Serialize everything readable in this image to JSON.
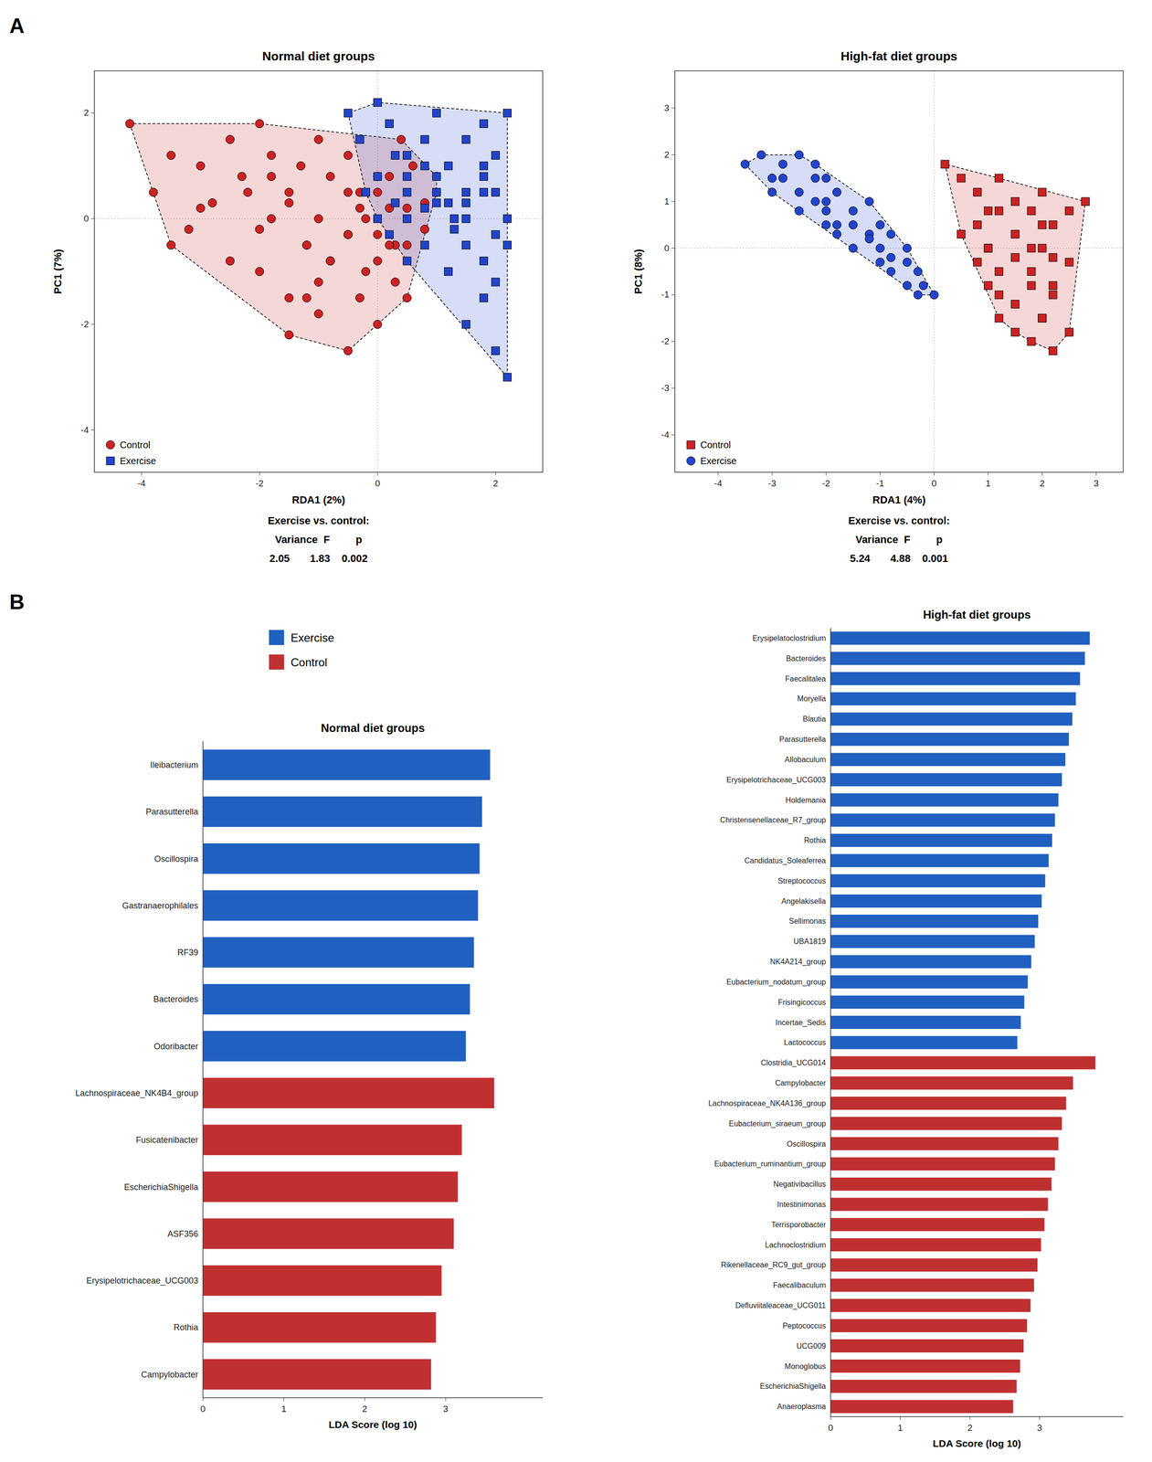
{
  "chart_data": [
    {
      "type": "scatter",
      "title": "Normal diet groups",
      "x_label": "RDA1 (2%)",
      "y_label": "PC1 (7%)",
      "xlim": [
        -4.8,
        2.8
      ],
      "ylim": [
        -4.8,
        2.8
      ],
      "xticks": [
        -4,
        -2,
        0,
        2
      ],
      "yticks": [
        -4,
        -2,
        0,
        2
      ],
      "grid": false,
      "legend": "lower left",
      "annotations": [
        "A",
        "Exercise vs. control:",
        "Variance  F         p",
        "2.05       1.83    0.002"
      ],
      "series": [
        {
          "name": "Control",
          "color": "#CC2222",
          "marker": "circle",
          "x": [
            -4.2,
            -3.8,
            -3.5,
            -3.2,
            -3.0,
            -2.8,
            -2.5,
            -2.3,
            -2.0,
            -1.8,
            -1.5,
            -1.3,
            -1.0,
            -0.8,
            -0.5,
            -0.3,
            0.0,
            0.2,
            0.4,
            0.6,
            0.8,
            1.0,
            -3.5,
            -3.0,
            -2.5,
            -2.2,
            -2.0,
            -1.8,
            -1.5,
            -1.2,
            -1.0,
            -0.8,
            -0.5,
            -0.3,
            0.0,
            0.2,
            0.5,
            -2.0,
            -1.8,
            -1.5,
            -1.2,
            -1.0,
            -0.8,
            -0.5,
            -0.3,
            0.0,
            0.3,
            -1.5,
            -1.2,
            -1.0,
            -0.5,
            -0.2,
            0.0,
            0.3,
            0.5,
            -0.5,
            -0.2,
            0.0,
            0.2,
            0.5,
            0.8,
            1.0
          ],
          "values": [
            1.8,
            0.5,
            1.2,
            -0.2,
            1.0,
            0.3,
            1.5,
            0.8,
            1.8,
            1.2,
            0.5,
            1.0,
            1.5,
            0.8,
            1.2,
            0.5,
            0.8,
            0.2,
            1.5,
            1.0,
            0.3,
            0.8,
            -0.5,
            0.2,
            -0.8,
            0.5,
            -0.2,
            0.8,
            0.3,
            -0.5,
            0.0,
            -0.8,
            0.5,
            0.2,
            -0.3,
            0.8,
            -0.5,
            -1.0,
            0.0,
            -1.5,
            -0.5,
            -1.2,
            -0.8,
            -0.3,
            -1.5,
            -0.8,
            -1.2,
            -2.2,
            -1.5,
            -1.8,
            -2.5,
            -1.0,
            -2.0,
            -0.5,
            -1.5,
            -0.3,
            0.0,
            0.5,
            -0.5,
            0.2,
            -0.2,
            0.5
          ]
        },
        {
          "name": "Exercise",
          "color": "#2244CC",
          "marker": "square",
          "x": [
            -0.5,
            -0.3,
            0.0,
            0.2,
            0.5,
            0.8,
            1.0,
            1.2,
            1.5,
            1.8,
            2.0,
            2.2,
            -0.2,
            0.0,
            0.3,
            0.5,
            0.8,
            1.0,
            1.2,
            1.5,
            1.8,
            2.0,
            0.0,
            0.3,
            0.5,
            0.8,
            1.0,
            1.3,
            1.5,
            1.8,
            0.2,
            0.5,
            0.8,
            1.0,
            1.3,
            1.5,
            1.8,
            2.0,
            2.2,
            0.5,
            0.8,
            1.2,
            1.5,
            1.8,
            2.0,
            2.2,
            1.5,
            1.8,
            2.0,
            2.2
          ],
          "values": [
            2.0,
            1.5,
            2.2,
            1.8,
            1.2,
            1.5,
            2.0,
            1.0,
            1.5,
            1.8,
            1.2,
            2.0,
            0.5,
            0.8,
            1.2,
            0.5,
            1.0,
            0.8,
            0.3,
            0.5,
            1.0,
            0.5,
            0.0,
            0.3,
            0.8,
            0.2,
            0.5,
            0.0,
            0.3,
            0.8,
            -0.3,
            0.0,
            -0.5,
            0.3,
            -0.2,
            0.0,
            0.5,
            -0.3,
            0.0,
            -0.8,
            -0.5,
            -1.0,
            -0.5,
            -0.8,
            -1.2,
            -0.5,
            -2.0,
            -1.5,
            -2.5,
            -3.0
          ]
        }
      ]
    },
    {
      "type": "scatter",
      "title": "High-fat diet groups",
      "x_label": "RDA1 (4%)",
      "y_label": "PC1 (8%)",
      "xlim": [
        -4.8,
        3.5
      ],
      "ylim": [
        -4.8,
        3.8
      ],
      "xticks": [
        -4,
        -3,
        -2,
        -1,
        0,
        1,
        2,
        3
      ],
      "yticks": [
        -4,
        -3,
        -2,
        -1,
        0,
        1,
        2,
        3
      ],
      "grid": false,
      "legend": "lower left",
      "annotations": [
        "Exercise vs. control:",
        "Variance  F         p",
        "5.24       4.88    0.001"
      ],
      "series": [
        {
          "name": "Control",
          "color": "#CC2222",
          "marker": "square",
          "x": [
            0.2,
            0.5,
            0.8,
            1.0,
            1.2,
            1.5,
            1.8,
            2.0,
            2.2,
            2.5,
            2.8,
            0.5,
            0.8,
            1.0,
            1.2,
            1.5,
            1.8,
            2.0,
            2.2,
            0.8,
            1.0,
            1.2,
            1.5,
            1.8,
            2.0,
            2.2,
            2.5,
            1.0,
            1.2,
            1.5,
            1.8,
            2.0,
            2.2,
            1.2,
            1.5,
            1.8,
            2.0,
            2.2,
            2.5
          ],
          "values": [
            1.8,
            1.5,
            1.2,
            0.8,
            1.5,
            1.0,
            0.8,
            1.2,
            0.5,
            0.8,
            1.0,
            0.3,
            0.5,
            0.0,
            0.8,
            0.3,
            0.0,
            0.5,
            -0.2,
            -0.3,
            0.0,
            -0.5,
            -0.2,
            -0.5,
            0.0,
            -0.8,
            -0.3,
            -0.8,
            -1.0,
            -1.2,
            -0.8,
            -1.5,
            -1.0,
            -1.5,
            -1.8,
            -2.0,
            -1.5,
            -2.2,
            -1.8
          ]
        },
        {
          "name": "Exercise",
          "color": "#2244CC",
          "marker": "circle",
          "x": [
            -3.5,
            -3.2,
            -3.0,
            -2.8,
            -2.5,
            -2.2,
            -2.0,
            -3.0,
            -2.8,
            -2.5,
            -2.2,
            -2.0,
            -1.8,
            -2.5,
            -2.2,
            -2.0,
            -1.8,
            -1.5,
            -1.2,
            -2.0,
            -1.8,
            -1.5,
            -1.2,
            -1.0,
            -0.8,
            -1.5,
            -1.2,
            -1.0,
            -0.8,
            -0.5,
            -1.0,
            -0.8,
            -0.5,
            -0.3,
            -0.5,
            -0.3,
            -0.2,
            0.0
          ],
          "values": [
            1.8,
            2.0,
            1.5,
            1.8,
            2.0,
            1.8,
            1.5,
            1.2,
            1.5,
            1.2,
            1.5,
            1.0,
            1.2,
            0.8,
            1.0,
            0.8,
            0.5,
            0.8,
            1.0,
            0.5,
            0.3,
            0.5,
            0.3,
            0.5,
            0.3,
            0.0,
            0.2,
            0.0,
            -0.2,
            0.0,
            -0.3,
            -0.5,
            -0.3,
            -0.5,
            -0.8,
            -1.0,
            -0.8,
            -1.0
          ]
        }
      ]
    },
    {
      "type": "bar",
      "orientation": "horizontal",
      "title": "Normal diet groups",
      "x_label": "LDA Score (log 10)",
      "xlim": [
        0,
        4.2
      ],
      "xticks": [
        0,
        1,
        2,
        3
      ],
      "grid": false,
      "legend": "top",
      "annotations": [
        "B"
      ],
      "categories": [
        "Ileibacterium",
        "Parasutterella",
        "Oscillospira",
        "Gastranaerophilales",
        "RF39",
        "Bacteroides",
        "Odoribacter",
        "Lachnospiraceae_NK4B4_group",
        "Fusicatenibacter",
        "EscherichiaShigella",
        "ASF356",
        "Erysipelotrichaceae_UCG003",
        "Rothia",
        "Campylobacter"
      ],
      "series": [
        {
          "name": "Exercise",
          "color": "#2060C0",
          "values": [
            3.55,
            3.45,
            3.42,
            3.4,
            3.35,
            3.3,
            3.25,
            null,
            null,
            null,
            null,
            null,
            null,
            null
          ]
        },
        {
          "name": "Control",
          "color": "#C03030",
          "values": [
            null,
            null,
            null,
            null,
            null,
            null,
            null,
            3.6,
            3.2,
            3.15,
            3.1,
            2.95,
            2.88,
            2.82
          ]
        }
      ]
    },
    {
      "type": "bar",
      "orientation": "horizontal",
      "title": "High-fat diet groups",
      "x_label": "LDA Score (log 10)",
      "xlim": [
        0,
        4.2
      ],
      "xticks": [
        0,
        1,
        2,
        3
      ],
      "grid": false,
      "categories": [
        "Erysipelatoclostridium",
        "Bacteroides",
        "Faecalitalea",
        "Moryella",
        "Blautia",
        "Parasutterella",
        "Allobaculum",
        "Erysipelotrichaceae_UCG003",
        "Holdemania",
        "Christensenellaceae_R7_group",
        "Rothia",
        "Candidatus_Soleaferrea",
        "Streptococcus",
        "Angelakisella",
        "Sellimonas",
        "UBA1819",
        "NK4A214_group",
        "Eubacterium_nodatum_group",
        "Frisingicoccus",
        "Incertae_Sedis",
        "Lactococcus",
        "Clostridia_UCG014",
        "Campylobacter",
        "Lachnospiraceae_NK4A136_group",
        "Eubacterium_siraeum_group",
        "Oscillospira",
        "Eubacterium_ruminantium_group",
        "Negativibacillus",
        "Intestinimonas",
        "Terrisporobacter",
        "Lachnoclostridium",
        "Rikenellaceae_RC9_gut_group",
        "Faecalibaculum",
        "Defluviitaleaceae_UCG011",
        "Peptococcus",
        "UCG009",
        "Monoglobus",
        "EscherichiaShigella",
        "Anaeroplasma"
      ],
      "series": [
        {
          "name": "Exercise",
          "color": "#2060C0",
          "values": [
            3.72,
            3.65,
            3.58,
            3.52,
            3.47,
            3.42,
            3.37,
            3.32,
            3.27,
            3.22,
            3.18,
            3.13,
            3.08,
            3.03,
            2.98,
            2.93,
            2.88,
            2.83,
            2.78,
            2.73,
            2.68,
            null,
            null,
            null,
            null,
            null,
            null,
            null,
            null,
            null,
            null,
            null,
            null,
            null,
            null,
            null,
            null,
            null,
            null
          ]
        },
        {
          "name": "Control",
          "color": "#C03030",
          "values": [
            null,
            null,
            null,
            null,
            null,
            null,
            null,
            null,
            null,
            null,
            null,
            null,
            null,
            null,
            null,
            null,
            null,
            null,
            null,
            null,
            null,
            3.8,
            3.48,
            3.38,
            3.32,
            3.27,
            3.22,
            3.17,
            3.12,
            3.07,
            3.02,
            2.97,
            2.92,
            2.87,
            2.82,
            2.77,
            2.72,
            2.67,
            2.62
          ]
        }
      ]
    }
  ]
}
